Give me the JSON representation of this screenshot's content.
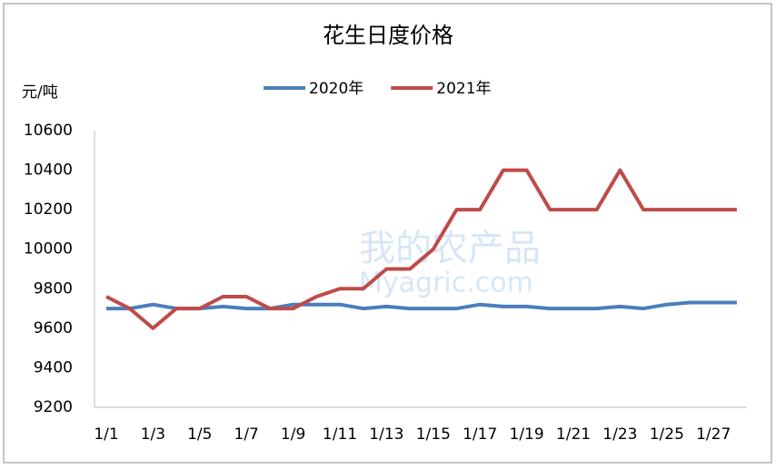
{
  "chart_data": {
    "type": "line",
    "title": "花生日度价格",
    "y_label": "元/吨",
    "watermark": [
      "我的农产品",
      "Myagric.com"
    ],
    "categories": [
      "1/1",
      null,
      "1/3",
      null,
      "1/5",
      null,
      "1/7",
      null,
      "1/9",
      null,
      "1/11",
      null,
      "1/13",
      null,
      "1/15",
      null,
      "1/17",
      null,
      "1/19",
      null,
      "1/21",
      null,
      "1/23",
      null,
      "1/25",
      null,
      "1/27",
      null
    ],
    "series": [
      {
        "name": "2020年",
        "color": "#4a7ebb",
        "values": [
          9700,
          9700,
          9720,
          9700,
          9700,
          9710,
          9700,
          9700,
          9720,
          9720,
          9720,
          9700,
          9710,
          9700,
          9700,
          9700,
          9720,
          9710,
          9710,
          9700,
          9700,
          9700,
          9710,
          9700,
          9720,
          9730,
          9730,
          9730
        ]
      },
      {
        "name": "2021年",
        "color": "#be4b48",
        "values": [
          9760,
          9700,
          9600,
          9700,
          9700,
          9760,
          9760,
          9700,
          9700,
          9760,
          9800,
          9800,
          9900,
          9900,
          10000,
          10200,
          10200,
          10400,
          10400,
          10200,
          10200,
          10200,
          10400,
          10200,
          10200,
          10200,
          10200,
          10200
        ]
      }
    ],
    "ylim": [
      9200,
      10600
    ],
    "yticks": [
      9200,
      9400,
      9600,
      9800,
      10000,
      10200,
      10400,
      10600
    ],
    "grid": false
  }
}
